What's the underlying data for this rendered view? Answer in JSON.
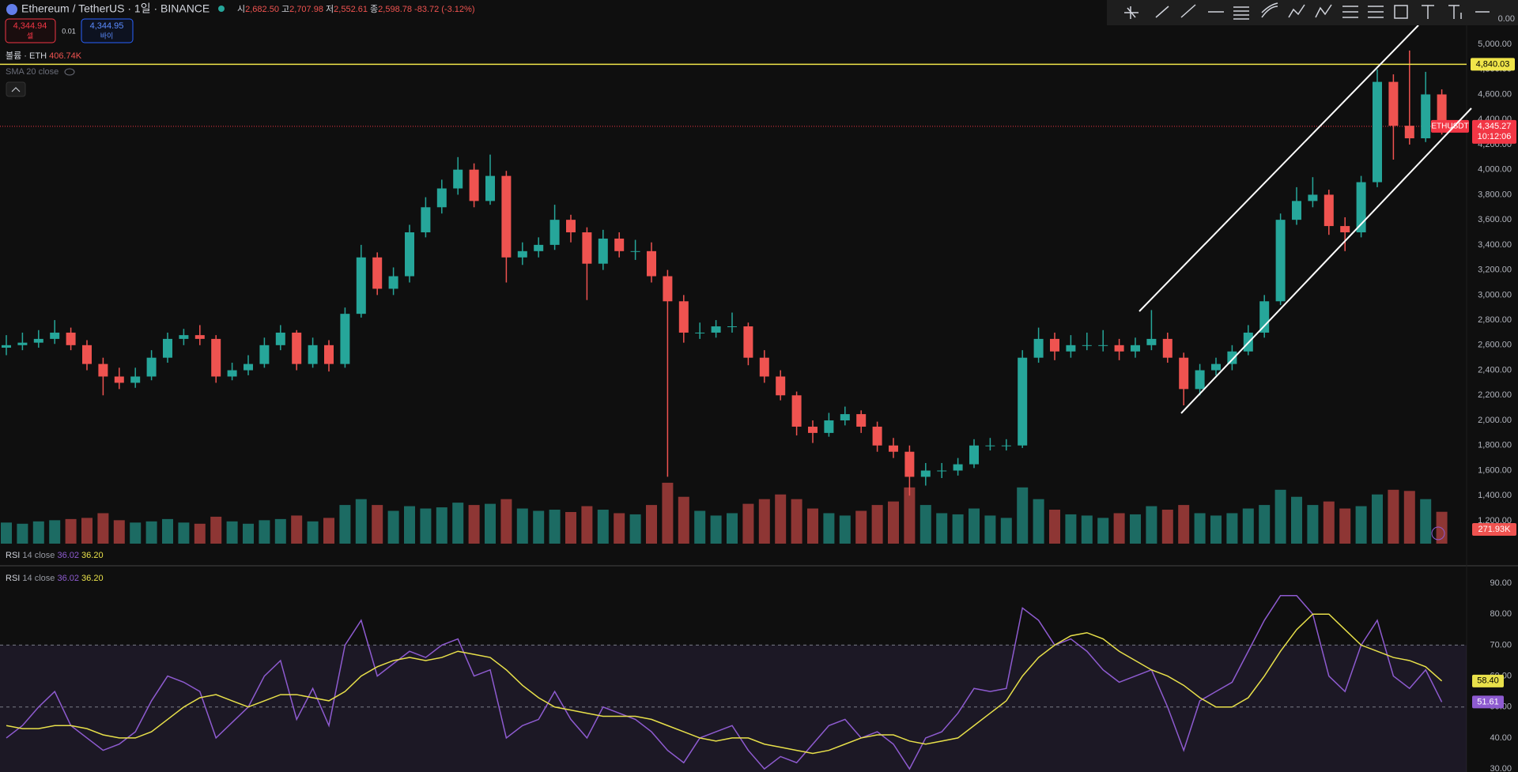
{
  "header": {
    "title": "Ethereum / TetherUS · 1일 · BINANCE",
    "ohlc": [
      {
        "label": "시",
        "value": "2,682.50"
      },
      {
        "label": "고",
        "value": "2,707.98"
      },
      {
        "label": "저",
        "value": "2,552.61"
      },
      {
        "label": "종",
        "value": "2,598.78"
      }
    ],
    "change": "-83.72 (-3.12%)",
    "sell": {
      "price": "4,344.94",
      "label": "셀"
    },
    "spread": "0.01",
    "buy": {
      "price": "4,344.95",
      "label": "바이"
    },
    "volume_legend": {
      "label": "볼륨 · ETH",
      "value": "406.74K"
    },
    "sma_legend": "SMA 20 close",
    "corner_value": "0.00"
  },
  "chart_data": [
    {
      "type": "candlestick",
      "open": [
        2580,
        2600,
        2620,
        2650,
        2700,
        2600,
        2450,
        2350,
        2300,
        2350,
        2500,
        2650,
        2680,
        2650,
        2350,
        2400,
        2450,
        2600,
        2700,
        2450,
        2600,
        2450,
        2850,
        3300,
        3050,
        3150,
        3500,
        3700,
        3850,
        4000,
        3750,
        3950,
        3300,
        3350,
        3400,
        3600,
        3500,
        3250,
        3450,
        3350,
        3350,
        3150,
        2950,
        2700,
        2700,
        2750,
        2750,
        2500,
        2350,
        2200,
        1950,
        1900,
        2000,
        2050,
        1950,
        1800,
        1750,
        1550,
        1600,
        1600,
        1650,
        1800,
        1800,
        1800,
        2500,
        2650,
        2550,
        2600,
        2600,
        2600,
        2550,
        2600,
        2650,
        2500,
        2250,
        2400,
        2450,
        2550,
        2700,
        2950,
        3600,
        3750,
        3800,
        3550,
        3500,
        3900,
        4700,
        4350,
        4250,
        4600
      ],
      "high": [
        2680,
        2700,
        2720,
        2800,
        2740,
        2640,
        2500,
        2420,
        2420,
        2560,
        2700,
        2730,
        2760,
        2680,
        2460,
        2520,
        2660,
        2760,
        2720,
        2660,
        2640,
        2900,
        3400,
        3340,
        3220,
        3560,
        3780,
        3920,
        4100,
        4050,
        4120,
        3990,
        3420,
        3460,
        3720,
        3640,
        3540,
        3520,
        3500,
        3440,
        3420,
        3200,
        3000,
        2780,
        2800,
        2860,
        2780,
        2560,
        2400,
        2230,
        2000,
        2060,
        2110,
        2080,
        1990,
        1860,
        1800,
        1660,
        1660,
        1700,
        1850,
        1860,
        1850,
        2560,
        2740,
        2700,
        2680,
        2700,
        2720,
        2650,
        2660,
        2880,
        2700,
        2540,
        2450,
        2500,
        2600,
        2760,
        3000,
        3650,
        3860,
        3940,
        3840,
        3620,
        3950,
        4800,
        4760,
        4950,
        4780,
        4640
      ],
      "low": [
        2520,
        2560,
        2580,
        2610,
        2560,
        2400,
        2200,
        2250,
        2260,
        2320,
        2460,
        2600,
        2600,
        2300,
        2320,
        2360,
        2420,
        2560,
        2400,
        2420,
        2390,
        2420,
        2820,
        3000,
        3000,
        3100,
        3460,
        3650,
        3800,
        3700,
        3720,
        3100,
        3240,
        3300,
        3360,
        3420,
        2960,
        3200,
        3300,
        3280,
        3100,
        1550,
        2620,
        2650,
        2660,
        2700,
        2440,
        2300,
        2160,
        1880,
        1820,
        1870,
        1960,
        1900,
        1750,
        1700,
        1400,
        1480,
        1540,
        1560,
        1620,
        1760,
        1760,
        1780,
        2460,
        2480,
        2500,
        2560,
        2550,
        2480,
        2500,
        2560,
        2460,
        2120,
        2200,
        2360,
        2400,
        2520,
        2660,
        2920,
        3560,
        3700,
        3480,
        3350,
        3460,
        3860,
        4080,
        4200,
        4220,
        4280
      ],
      "close": [
        2600,
        2620,
        2650,
        2700,
        2600,
        2450,
        2350,
        2300,
        2350,
        2500,
        2650,
        2680,
        2650,
        2350,
        2400,
        2450,
        2600,
        2700,
        2450,
        2600,
        2450,
        2850,
        3300,
        3050,
        3150,
        3500,
        3700,
        3850,
        4000,
        3750,
        3950,
        3300,
        3350,
        3400,
        3600,
        3500,
        3250,
        3450,
        3350,
        3350,
        3150,
        2950,
        2700,
        2700,
        2750,
        2750,
        2500,
        2350,
        2200,
        1950,
        1900,
        2000,
        2050,
        1950,
        1800,
        1750,
        1550,
        1600,
        1600,
        1650,
        1800,
        1800,
        1800,
        2500,
        2650,
        2550,
        2600,
        2600,
        2600,
        2550,
        2600,
        2650,
        2500,
        2250,
        2400,
        2450,
        2550,
        2700,
        2950,
        3600,
        3750,
        3800,
        3550,
        3500,
        3900,
        4700,
        4350,
        4250,
        4600,
        4345
      ],
      "volume": [
        180,
        170,
        190,
        200,
        210,
        220,
        260,
        200,
        180,
        190,
        210,
        180,
        170,
        230,
        190,
        170,
        200,
        210,
        240,
        190,
        220,
        330,
        380,
        330,
        280,
        320,
        300,
        310,
        350,
        330,
        340,
        380,
        300,
        280,
        290,
        270,
        320,
        290,
        260,
        250,
        330,
        520,
        400,
        280,
        240,
        260,
        340,
        380,
        420,
        380,
        300,
        260,
        240,
        280,
        330,
        360,
        480,
        330,
        260,
        250,
        300,
        240,
        220,
        480,
        380,
        290,
        250,
        240,
        220,
        260,
        250,
        320,
        290,
        330,
        260,
        240,
        260,
        300,
        330,
        460,
        400,
        330,
        360,
        300,
        320,
        420,
        460,
        450,
        380,
        271.93
      ],
      "volume_lim": [
        0,
        560
      ],
      "volume_label": "271.93K",
      "up_color": "#26a69a",
      "down_color": "#ef5350",
      "up_volume_color": "#1c6b63",
      "down_volume_color": "#8e3634",
      "ylim": [
        1017,
        5353
      ],
      "yticks": [
        {
          "value": 5000,
          "label": "5,000.00"
        },
        {
          "value": 4800,
          "label": "4,800.00"
        },
        {
          "value": 4600,
          "label": "4,600.00"
        },
        {
          "value": 4400,
          "label": "4,400.00"
        },
        {
          "value": 4200,
          "label": "4,200.00"
        },
        {
          "value": 4000,
          "label": "4,000.00"
        },
        {
          "value": 3800,
          "label": "3,800.00"
        },
        {
          "value": 3600,
          "label": "3,600.00"
        },
        {
          "value": 3400,
          "label": "3,400.00"
        },
        {
          "value": 3200,
          "label": "3,200.00"
        },
        {
          "value": 3000,
          "label": "3,000.00"
        },
        {
          "value": 2800,
          "label": "2,800.00"
        },
        {
          "value": 2600,
          "label": "2,600.00"
        },
        {
          "value": 2400,
          "label": "2,400.00"
        },
        {
          "value": 2200,
          "label": "2,200.00"
        },
        {
          "value": 2000,
          "label": "2,000.00"
        },
        {
          "value": 1800,
          "label": "1,800.00"
        },
        {
          "value": 1600,
          "label": "1,600.00"
        },
        {
          "value": 1400,
          "label": "1,400.00"
        },
        {
          "value": 1200,
          "label": "1,200.00"
        }
      ],
      "grid": false,
      "hline": {
        "value": 4840.03,
        "label": "4,840.03",
        "color": "#f0e54a"
      },
      "current_price": {
        "value": 4345.27,
        "label": "4,345.27",
        "color": "#f23645"
      },
      "symbol_tag": "ETHUSDT",
      "countdown": "10:12:06"
    },
    {
      "type": "line",
      "legends": [
        {
          "label": "RSI",
          "params": "14 close",
          "values": [
            "36.02",
            "36.20"
          ]
        },
        {
          "label": "RSI",
          "params": "14 close",
          "values": [
            "36.02",
            "36.20"
          ]
        }
      ],
      "series": [
        {
          "color": "#8e5bd0",
          "values": [
            40,
            44,
            50,
            55,
            44,
            40,
            36,
            38,
            42,
            52,
            60,
            58,
            55,
            40,
            45,
            50,
            60,
            65,
            46,
            56,
            44,
            70,
            78,
            60,
            64,
            68,
            66,
            70,
            72,
            60,
            62,
            40,
            44,
            46,
            55,
            46,
            40,
            50,
            48,
            46,
            42,
            36,
            32,
            40,
            42,
            44,
            36,
            30,
            34,
            32,
            38,
            44,
            46,
            40,
            42,
            38,
            30,
            40,
            42,
            48,
            56,
            55,
            56,
            82,
            78,
            70,
            72,
            68,
            62,
            58,
            60,
            62,
            50,
            36,
            52,
            55,
            58,
            68,
            78,
            86,
            86,
            80,
            60,
            55,
            70,
            78,
            60,
            56,
            62,
            51.61
          ],
          "last_label": "51.61"
        },
        {
          "color": "#e8e04a",
          "values": [
            44,
            43,
            43,
            44,
            44,
            43,
            41,
            40,
            40,
            42,
            46,
            50,
            53,
            54,
            52,
            50,
            52,
            54,
            54,
            53,
            52,
            55,
            60,
            63,
            65,
            66,
            65,
            66,
            68,
            67,
            66,
            62,
            57,
            53,
            50,
            49,
            48,
            47,
            47,
            47,
            46,
            44,
            42,
            40,
            39,
            40,
            40,
            38,
            37,
            36,
            35,
            36,
            38,
            40,
            41,
            41,
            39,
            38,
            39,
            40,
            44,
            48,
            52,
            60,
            66,
            70,
            73,
            74,
            72,
            68,
            65,
            62,
            60,
            57,
            53,
            50,
            50,
            53,
            60,
            68,
            75,
            80,
            80,
            75,
            70,
            68,
            66,
            65,
            63,
            58.4
          ],
          "last_label": "58.40"
        }
      ],
      "bands": [
        70,
        50
      ],
      "ylim": [
        29,
        94.1
      ],
      "yticks": [
        {
          "value": 90,
          "label": "90.00"
        },
        {
          "value": 80,
          "label": "80.00"
        },
        {
          "value": 70,
          "label": "70.00"
        },
        {
          "value": 60,
          "label": "60.00"
        },
        {
          "value": 50,
          "label": "50.00"
        },
        {
          "value": 40,
          "label": "40.00"
        },
        {
          "value": 30,
          "label": "30.00"
        }
      ],
      "grid": false
    }
  ]
}
